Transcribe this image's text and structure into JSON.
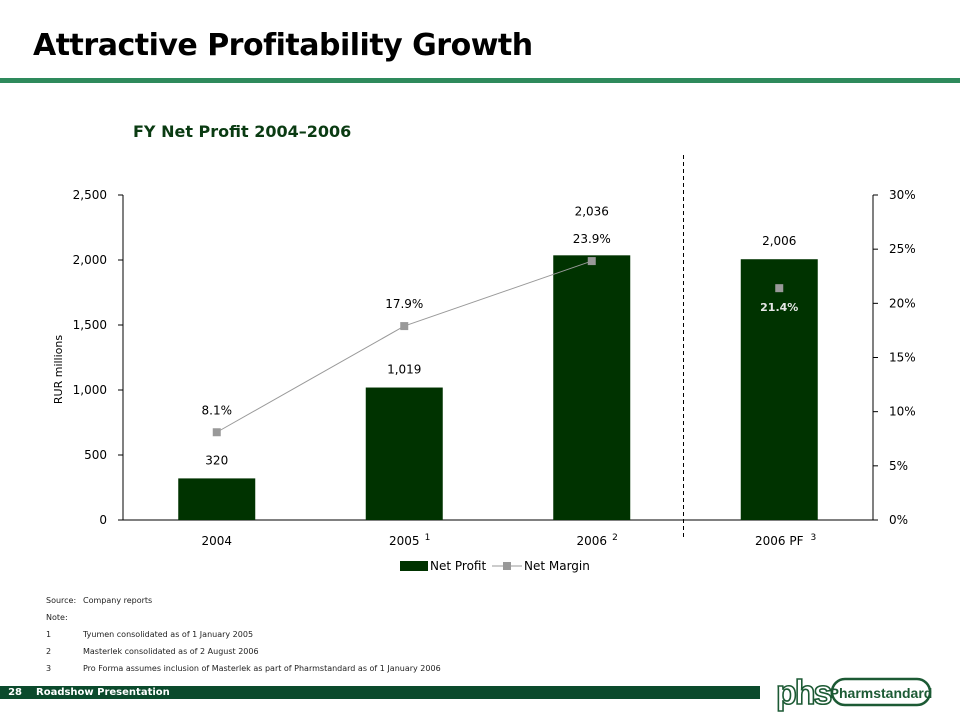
{
  "header": {
    "title": "Attractive Profitability Growth"
  },
  "chart_data": {
    "type": "bar",
    "title": "FY Net Profit 2004–2006",
    "categories": [
      "2004",
      "2005",
      "2006",
      "2006 PF"
    ],
    "category_notes": [
      "",
      "1",
      "2",
      "3"
    ],
    "series": [
      {
        "name": "Net Profit",
        "type": "bar",
        "values": [
          320,
          1019,
          2036,
          2006
        ],
        "labels": [
          "320",
          "1,019",
          "2,036",
          "2,006"
        ],
        "color": "#003300"
      },
      {
        "name": "Net Margin",
        "type": "line",
        "values": [
          8.1,
          17.9,
          23.9,
          21.4
        ],
        "labels": [
          "8.1%",
          "17.9%",
          "23.9%",
          "21.4%"
        ],
        "color": "#999999"
      }
    ],
    "ylabel": "RUR millions",
    "ylim": [
      0,
      2500
    ],
    "yticks": [
      "0",
      "500",
      "1,000",
      "1,500",
      "2,000",
      "2,500"
    ],
    "y2lim": [
      0,
      30
    ],
    "y2ticks": [
      "0%",
      "5%",
      "10%",
      "15%",
      "20%",
      "25%",
      "30%"
    ],
    "legend_position": "bottom",
    "grid": false
  },
  "sources": [
    {
      "label": "Source:",
      "text": "Company reports"
    },
    {
      "label": "Note:",
      "text": ""
    },
    {
      "label": "1",
      "text": "Tyumen consolidated as of 1 January 2005"
    },
    {
      "label": "2",
      "text": "Masterlek consolidated as of 2 August 2006"
    },
    {
      "label": "3",
      "text": "Pro Forma assumes inclusion of Masterlek as part of Pharmstandard as of 1 January 2006"
    }
  ],
  "footer": {
    "page": "28",
    "presentation": "Roadshow Presentation"
  },
  "logo": {
    "text": "Pharmstandard",
    "mark": "phs"
  },
  "colors": {
    "bar": "#003300",
    "line": "#999999",
    "accent": "#2e8a5c",
    "footer": "#0b4a2c"
  }
}
